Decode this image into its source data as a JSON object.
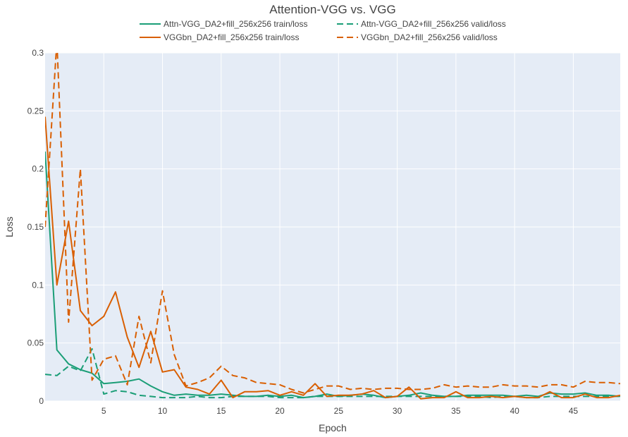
{
  "chart_data": {
    "type": "line",
    "title": "Attention-VGG vs. VGG",
    "xlabel": "Epoch",
    "ylabel": "Loss",
    "xlim": [
      0,
      49
    ],
    "ylim": [
      0,
      0.3
    ],
    "xticks": [
      5,
      10,
      15,
      20,
      25,
      30,
      35,
      40,
      45
    ],
    "yticks": [
      0,
      0.05,
      0.1,
      0.15,
      0.2,
      0.25,
      0.3
    ],
    "ytick_labels": [
      "0",
      "0.05",
      "0.1",
      "0.15",
      "0.2",
      "0.25",
      "0.3"
    ],
    "grid": true,
    "legend_position": "top",
    "series": [
      {
        "name": "Attn-VGG_DA2+fill_256x256 train/loss",
        "color": "#1b9e77",
        "dash": "solid",
        "x": [
          0,
          1,
          2,
          3,
          4,
          5,
          6,
          7,
          8,
          9,
          10,
          11,
          12,
          13,
          14,
          15,
          16,
          17,
          18,
          19,
          20,
          21,
          22,
          23,
          24,
          25,
          26,
          27,
          28,
          29,
          30,
          31,
          32,
          33,
          34,
          35,
          36,
          37,
          38,
          39,
          40,
          41,
          42,
          43,
          44,
          45,
          46,
          47,
          48,
          49
        ],
        "y": [
          0.215,
          0.044,
          0.032,
          0.027,
          0.024,
          0.015,
          0.016,
          0.017,
          0.019,
          0.013,
          0.008,
          0.005,
          0.006,
          0.005,
          0.005,
          0.006,
          0.005,
          0.004,
          0.004,
          0.005,
          0.004,
          0.005,
          0.003,
          0.004,
          0.006,
          0.004,
          0.005,
          0.006,
          0.005,
          0.003,
          0.004,
          0.005,
          0.007,
          0.005,
          0.004,
          0.004,
          0.005,
          0.005,
          0.005,
          0.005,
          0.004,
          0.005,
          0.004,
          0.007,
          0.006,
          0.006,
          0.007,
          0.005,
          0.005,
          0.004
        ]
      },
      {
        "name": "Attn-VGG_DA2+fill_256x256 valid/loss",
        "color": "#1b9e77",
        "dash": "dash",
        "x": [
          0,
          1,
          2,
          3,
          4,
          5,
          6,
          7,
          8,
          9,
          10,
          11,
          12,
          13,
          14,
          15,
          16,
          17,
          18,
          19,
          20,
          21,
          22,
          23,
          24,
          25,
          26,
          27,
          28,
          29,
          30,
          31,
          32,
          33,
          34,
          35,
          36,
          37,
          38,
          39,
          40,
          41,
          42,
          43,
          44,
          45,
          46,
          47,
          48,
          49
        ],
        "y": [
          0.023,
          0.022,
          0.03,
          0.026,
          0.045,
          0.006,
          0.009,
          0.008,
          0.005,
          0.004,
          0.003,
          0.003,
          0.003,
          0.004,
          0.003,
          0.003,
          0.004,
          0.004,
          0.004,
          0.004,
          0.003,
          0.003,
          0.003,
          0.004,
          0.004,
          0.004,
          0.004,
          0.004,
          0.004,
          0.004,
          0.004,
          0.004,
          0.004,
          0.004,
          0.004,
          0.004,
          0.004,
          0.004,
          0.003,
          0.004,
          0.004,
          0.003,
          0.003,
          0.004,
          0.004,
          0.004,
          0.004,
          0.004,
          0.004,
          0.004
        ]
      },
      {
        "name": "VGGbn_DA2+fill_256x256 train/loss",
        "color": "#d95f02",
        "dash": "solid",
        "x": [
          0,
          1,
          2,
          3,
          4,
          5,
          6,
          7,
          8,
          9,
          10,
          11,
          12,
          13,
          14,
          15,
          16,
          17,
          18,
          19,
          20,
          21,
          22,
          23,
          24,
          25,
          26,
          27,
          28,
          29,
          30,
          31,
          32,
          33,
          34,
          35,
          36,
          37,
          38,
          39,
          40,
          41,
          42,
          43,
          44,
          45,
          46,
          47,
          48,
          49
        ],
        "y": [
          0.245,
          0.1,
          0.155,
          0.078,
          0.065,
          0.073,
          0.094,
          0.055,
          0.029,
          0.06,
          0.025,
          0.027,
          0.012,
          0.01,
          0.006,
          0.018,
          0.003,
          0.008,
          0.008,
          0.009,
          0.005,
          0.008,
          0.005,
          0.015,
          0.004,
          0.005,
          0.005,
          0.006,
          0.009,
          0.003,
          0.004,
          0.012,
          0.002,
          0.003,
          0.003,
          0.008,
          0.003,
          0.003,
          0.004,
          0.003,
          0.004,
          0.003,
          0.003,
          0.008,
          0.003,
          0.003,
          0.006,
          0.003,
          0.003,
          0.005
        ]
      },
      {
        "name": "VGGbn_DA2+fill_256x256 valid/loss",
        "color": "#d95f02",
        "dash": "dash",
        "x": [
          0,
          1,
          2,
          3,
          4,
          5,
          6,
          7,
          8,
          9,
          10,
          11,
          12,
          13,
          14,
          15,
          16,
          17,
          18,
          19,
          20,
          21,
          22,
          23,
          24,
          25,
          26,
          27,
          28,
          29,
          30,
          31,
          32,
          33,
          34,
          35,
          36,
          37,
          38,
          39,
          40,
          41,
          42,
          43,
          44,
          45,
          46,
          47,
          48,
          49
        ],
        "y": [
          0.15,
          0.31,
          0.068,
          0.2,
          0.018,
          0.036,
          0.039,
          0.014,
          0.073,
          0.033,
          0.095,
          0.04,
          0.013,
          0.016,
          0.02,
          0.03,
          0.022,
          0.02,
          0.016,
          0.015,
          0.014,
          0.01,
          0.007,
          0.01,
          0.013,
          0.013,
          0.01,
          0.011,
          0.01,
          0.011,
          0.011,
          0.01,
          0.01,
          0.011,
          0.014,
          0.012,
          0.013,
          0.012,
          0.012,
          0.014,
          0.013,
          0.013,
          0.012,
          0.014,
          0.014,
          0.012,
          0.017,
          0.016,
          0.016,
          0.015
        ]
      }
    ]
  }
}
